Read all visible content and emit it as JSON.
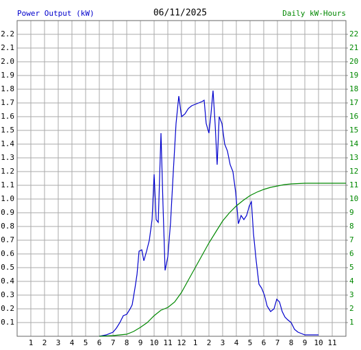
{
  "chart_data": {
    "type": "line",
    "title": "06/11/2025",
    "y_label": "Power Output (kW)",
    "y2_label": "Daily kW-Hours",
    "grid": true,
    "xlim": [
      0,
      24
    ],
    "xticks": [
      1,
      2,
      3,
      4,
      5,
      6,
      7,
      8,
      9,
      10,
      11,
      12,
      {
        "value": 13,
        "label": "1"
      },
      {
        "value": 14,
        "label": "2"
      },
      {
        "value": 15,
        "label": "3"
      },
      {
        "value": 16,
        "label": "4"
      },
      {
        "value": 17,
        "label": "5"
      },
      {
        "value": 18,
        "label": "6"
      },
      {
        "value": 19,
        "label": "7"
      },
      {
        "value": 20,
        "label": "8"
      },
      {
        "value": 21,
        "label": "9"
      },
      {
        "value": 22,
        "label": "10"
      },
      {
        "value": 23,
        "label": "11"
      }
    ],
    "ylim": [
      0,
      2.3
    ],
    "yticks": [
      0.1,
      0.2,
      0.3,
      0.4,
      0.5,
      0.6,
      0.7,
      0.8,
      0.9,
      {
        "value": 1,
        "label": "1.0"
      },
      1.1,
      1.2,
      1.3,
      1.4,
      1.5,
      1.6,
      1.7,
      1.8,
      1.9,
      {
        "value": 2,
        "label": "2.0"
      },
      2.1,
      2.2
    ],
    "y2lim": [
      0,
      23
    ],
    "y2ticks": [
      1,
      2,
      3,
      4,
      5,
      6,
      7,
      8,
      9,
      10,
      11,
      12,
      13,
      14,
      15,
      16,
      17,
      18,
      19,
      20,
      21,
      22
    ],
    "series": [
      {
        "color": "#0000cc",
        "x": [
          6.0,
          6.5,
          7.0,
          7.25,
          7.5,
          7.75,
          8.0,
          8.25,
          8.4,
          8.6,
          8.75,
          8.9,
          9.1,
          9.25,
          9.45,
          9.65,
          9.85,
          10.0,
          10.15,
          10.3,
          10.5,
          10.65,
          10.8,
          11.0,
          11.2,
          11.4,
          11.6,
          11.8,
          12.0,
          12.25,
          12.5,
          12.75,
          13.0,
          13.25,
          13.5,
          13.65,
          13.8,
          14.0,
          14.15,
          14.3,
          14.45,
          14.6,
          14.75,
          14.95,
          15.15,
          15.35,
          15.55,
          15.75,
          15.95,
          16.15,
          16.35,
          16.55,
          16.75,
          16.95,
          17.1,
          17.25,
          17.45,
          17.65,
          17.85,
          18.05,
          18.25,
          18.5,
          18.75,
          18.95,
          19.15,
          19.35,
          19.55,
          19.75,
          20.0,
          20.25,
          20.5,
          20.75,
          21.0,
          21.5,
          22.0
        ],
        "values": [
          0,
          0.01,
          0.03,
          0.06,
          0.1,
          0.15,
          0.16,
          0.2,
          0.23,
          0.35,
          0.45,
          0.62,
          0.63,
          0.55,
          0.62,
          0.7,
          0.85,
          1.18,
          0.85,
          0.83,
          1.48,
          0.95,
          0.48,
          0.58,
          0.83,
          1.2,
          1.55,
          1.75,
          1.6,
          1.62,
          1.66,
          1.68,
          1.69,
          1.7,
          1.71,
          1.72,
          1.55,
          1.48,
          1.62,
          1.79,
          1.55,
          1.25,
          1.6,
          1.55,
          1.4,
          1.35,
          1.25,
          1.2,
          1.05,
          0.82,
          0.88,
          0.85,
          0.88,
          0.95,
          0.98,
          0.75,
          0.55,
          0.38,
          0.35,
          0.3,
          0.22,
          0.18,
          0.2,
          0.27,
          0.25,
          0.18,
          0.14,
          0.12,
          0.1,
          0.05,
          0.03,
          0.02,
          0.01,
          0.01,
          0.01
        ]
      },
      {
        "color": "#008800",
        "axis": "y2",
        "x": [
          6,
          7,
          7.5,
          8,
          8.5,
          9,
          9.5,
          10,
          10.5,
          11,
          11.5,
          12,
          12.5,
          13,
          13.5,
          14,
          14.5,
          15,
          15.5,
          16,
          16.5,
          17,
          17.5,
          18,
          18.5,
          19,
          19.5,
          20,
          21,
          22,
          23,
          24
        ],
        "values": [
          0,
          0.05,
          0.1,
          0.15,
          0.35,
          0.65,
          1.0,
          1.5,
          1.9,
          2.1,
          2.5,
          3.2,
          4.1,
          5.0,
          5.9,
          6.8,
          7.6,
          8.4,
          9.0,
          9.5,
          9.9,
          10.25,
          10.5,
          10.7,
          10.85,
          10.95,
          11.05,
          11.1,
          11.15,
          11.15,
          11.15,
          11.15
        ]
      }
    ]
  }
}
